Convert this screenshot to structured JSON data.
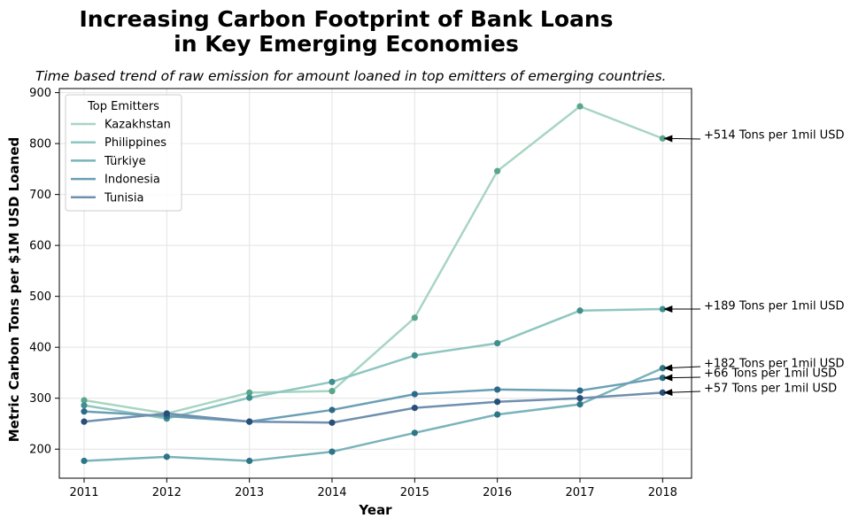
{
  "chart_data": {
    "type": "line",
    "title_lines": [
      "Increasing Carbon Footprint of Bank Loans",
      "in Key Emerging Economies"
    ],
    "subtitle": "Time based trend of raw emission for amount loaned in top emitters of emerging countries.",
    "xlabel": "Year",
    "ylabel": "Metric Carbon Tons per $1M USD Loaned",
    "x": [
      2011,
      2012,
      2013,
      2014,
      2015,
      2016,
      2017,
      2018
    ],
    "x_tick_labels": [
      "2011",
      "2012",
      "2013",
      "2014",
      "2015",
      "2016",
      "2017",
      "2018"
    ],
    "y_ticks": [
      200,
      300,
      400,
      500,
      600,
      700,
      800,
      900
    ],
    "y_tick_labels": [
      "200",
      "300",
      "400",
      "500",
      "600",
      "700",
      "800",
      "900"
    ],
    "xlim": [
      2010.7,
      2018.35
    ],
    "ylim": [
      143,
      908
    ],
    "grid": true,
    "legend": {
      "title": "Top Emitters",
      "placement": "top-left"
    },
    "series": [
      {
        "name": "Kazakhstan",
        "color": "#a8d5c2",
        "marker_color": "#5aa68c",
        "values": [
          296,
          270,
          311,
          314,
          458,
          746,
          873,
          810
        ]
      },
      {
        "name": "Philippines",
        "color": "#8ec6c0",
        "marker_color": "#3f8f8e",
        "values": [
          286,
          260,
          301,
          332,
          384,
          408,
          472,
          475
        ]
      },
      {
        "name": "Türkiye",
        "color": "#7ab3ba",
        "marker_color": "#2e7686",
        "values": [
          177,
          185,
          177,
          195,
          232,
          268,
          288,
          359
        ]
      },
      {
        "name": "Indonesia",
        "color": "#6a9fb5",
        "marker_color": "#2c6a8a",
        "values": [
          274,
          265,
          254,
          277,
          308,
          317,
          315,
          340
        ]
      },
      {
        "name": "Tunisia",
        "color": "#6f8fae",
        "marker_color": "#274f78",
        "values": [
          254,
          270,
          254,
          252,
          281,
          293,
          300,
          311
        ]
      }
    ],
    "annotations": [
      {
        "text": "+514 Tons per 1mil USD",
        "series": "Kazakhstan"
      },
      {
        "text": "+189 Tons per 1mil USD",
        "series": "Philippines"
      },
      {
        "text": "+182 Tons per 1mil USD",
        "series": "Türkiye"
      },
      {
        "text": "+66 Tons per 1mil USD",
        "series": "Indonesia"
      },
      {
        "text": "+57 Tons per 1mil USD",
        "series": "Tunisia"
      }
    ]
  }
}
